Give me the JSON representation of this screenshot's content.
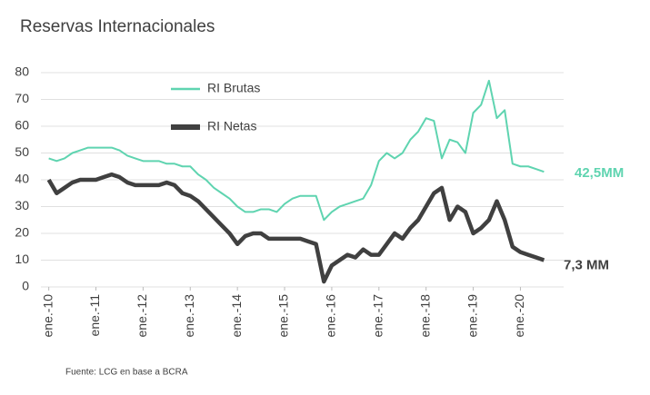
{
  "chart_data": {
    "type": "line",
    "title": "Reservas Internacionales",
    "source": "Fuente:  LCG en base  a BCRA",
    "x": [
      "2010-01",
      "2010-03",
      "2010-05",
      "2010-07",
      "2010-09",
      "2010-11",
      "2011-01",
      "2011-03",
      "2011-05",
      "2011-07",
      "2011-09",
      "2011-11",
      "2012-01",
      "2012-03",
      "2012-05",
      "2012-07",
      "2012-09",
      "2012-11",
      "2013-01",
      "2013-03",
      "2013-05",
      "2013-07",
      "2013-09",
      "2013-11",
      "2014-01",
      "2014-03",
      "2014-05",
      "2014-07",
      "2014-09",
      "2014-11",
      "2015-01",
      "2015-03",
      "2015-05",
      "2015-07",
      "2015-09",
      "2015-11",
      "2016-01",
      "2016-03",
      "2016-05",
      "2016-07",
      "2016-09",
      "2016-11",
      "2017-01",
      "2017-03",
      "2017-05",
      "2017-07",
      "2017-09",
      "2017-11",
      "2018-01",
      "2018-03",
      "2018-05",
      "2018-07",
      "2018-09",
      "2018-11",
      "2019-01",
      "2019-03",
      "2019-05",
      "2019-07",
      "2019-09",
      "2019-11",
      "2020-01",
      "2020-03",
      "2020-05",
      "2020-07"
    ],
    "series": [
      {
        "name": "RI Brutas",
        "color": "#5fd4b0",
        "values": [
          48,
          47,
          48,
          50,
          51,
          52,
          52,
          52,
          52,
          51,
          49,
          48,
          47,
          47,
          47,
          46,
          46,
          45,
          45,
          42,
          40,
          37,
          35,
          33,
          30,
          28,
          28,
          29,
          29,
          28,
          31,
          33,
          34,
          34,
          34,
          25,
          28,
          30,
          31,
          32,
          33,
          38,
          47,
          50,
          48,
          50,
          55,
          58,
          63,
          62,
          48,
          55,
          54,
          50,
          65,
          68,
          77,
          63,
          66,
          46,
          45,
          45,
          44,
          43
        ]
      },
      {
        "name": "RI Netas",
        "color": "#404040",
        "values": [
          40,
          35,
          37,
          39,
          40,
          40,
          40,
          41,
          42,
          41,
          39,
          38,
          38,
          38,
          38,
          39,
          38,
          35,
          34,
          32,
          29,
          26,
          23,
          20,
          16,
          19,
          20,
          20,
          18,
          18,
          18,
          18,
          18,
          17,
          16,
          2,
          8,
          10,
          12,
          11,
          14,
          12,
          12,
          16,
          20,
          18,
          22,
          25,
          30,
          35,
          37,
          25,
          30,
          28,
          20,
          22,
          25,
          32,
          25,
          15,
          13,
          12,
          11,
          10
        ]
      }
    ],
    "annotations": [
      "42,5MM",
      "7,3 MM"
    ],
    "xlim": [
      "2009-11",
      "2020-12"
    ],
    "xticks": [
      {
        "value": "2010-01",
        "label": "ene.-10"
      },
      {
        "value": "2011-01",
        "label": "ene.-11"
      },
      {
        "value": "2012-01",
        "label": "ene.-12"
      },
      {
        "value": "2013-01",
        "label": "ene.-13"
      },
      {
        "value": "2014-01",
        "label": "ene.-14"
      },
      {
        "value": "2015-01",
        "label": "ene.-15"
      },
      {
        "value": "2016-01",
        "label": "ene.-16"
      },
      {
        "value": "2017-01",
        "label": "ene.-17"
      },
      {
        "value": "2018-01",
        "label": "ene.-18"
      },
      {
        "value": "2019-01",
        "label": "ene.-19"
      },
      {
        "value": "2020-01",
        "label": "ene.-20"
      }
    ],
    "ylim": [
      0,
      80
    ],
    "yticks": [
      0,
      10,
      20,
      30,
      40,
      50,
      60,
      70,
      80
    ],
    "grid": true
  }
}
